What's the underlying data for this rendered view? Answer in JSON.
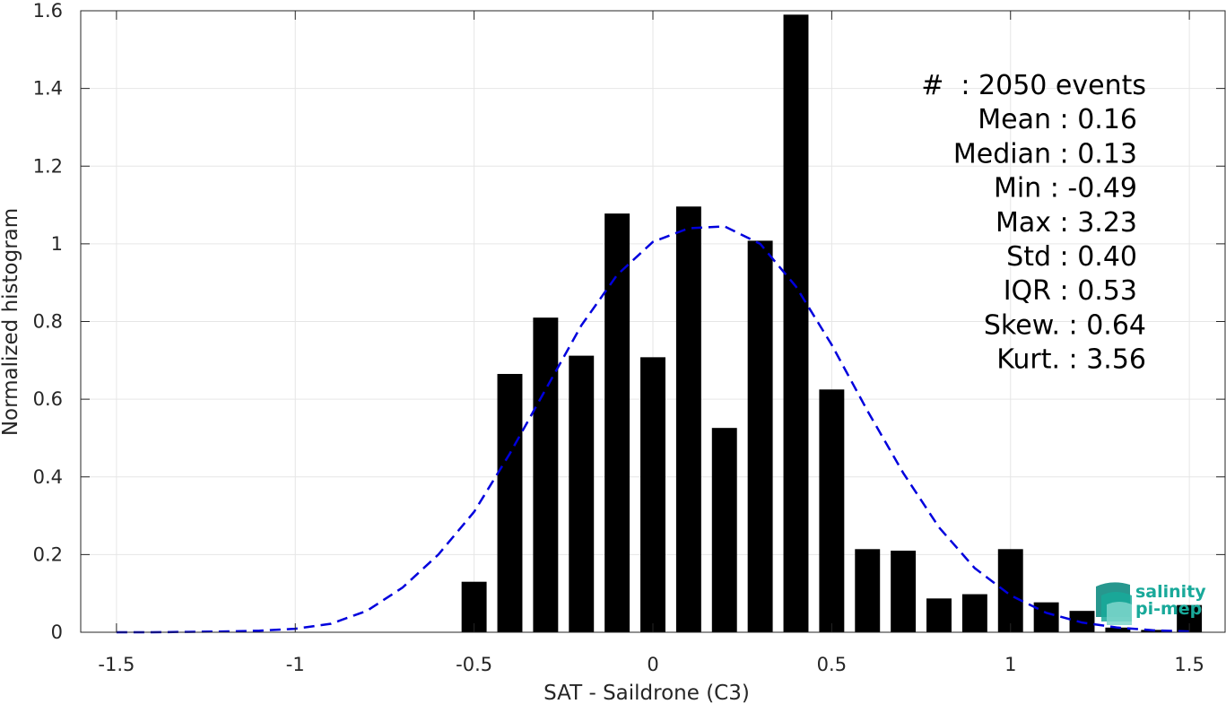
{
  "chart_data": {
    "type": "bar",
    "xlabel": "SAT - Saildrone (C3)",
    "ylabel": "Normalized histogram",
    "xlim": [
      -1.6,
      1.6
    ],
    "ylim": [
      0,
      1.6
    ],
    "xticks": [
      -1.5,
      -1,
      -0.5,
      0,
      0.5,
      1,
      1.5
    ],
    "xtick_labels": [
      "-1.5",
      "-1",
      "-0.5",
      "0",
      "0.5",
      "1",
      "1.5"
    ],
    "yticks": [
      0,
      0.2,
      0.4,
      0.6,
      0.8,
      1,
      1.2,
      1.4,
      1.6
    ],
    "ytick_labels": [
      "0",
      "0.2",
      "0.4",
      "0.6",
      "0.8",
      "1",
      "1.2",
      "1.4",
      "1.6"
    ],
    "grid": true,
    "bar_color": "#000000",
    "bar_width": 0.07,
    "bars": {
      "x": [
        -0.5,
        -0.4,
        -0.3,
        -0.2,
        -0.1,
        0.0,
        0.1,
        0.2,
        0.3,
        0.4,
        0.5,
        0.6,
        0.7,
        0.8,
        0.9,
        1.0,
        1.1,
        1.2,
        1.3,
        1.4,
        1.5
      ],
      "y": [
        0.13,
        0.665,
        0.81,
        0.712,
        1.078,
        0.708,
        1.096,
        0.526,
        1.008,
        1.59,
        0.625,
        0.214,
        0.21,
        0.087,
        0.098,
        0.214,
        0.077,
        0.055,
        0.012,
        0.006,
        0.07
      ]
    },
    "fit_curve": {
      "style": "dashed",
      "color": "#0000dd",
      "x": [
        -1.5,
        -1.4,
        -1.3,
        -1.2,
        -1.1,
        -1.0,
        -0.9,
        -0.8,
        -0.7,
        -0.6,
        -0.5,
        -0.4,
        -0.3,
        -0.2,
        -0.1,
        0.0,
        0.1,
        0.2,
        0.3,
        0.4,
        0.5,
        0.6,
        0.7,
        0.8,
        0.9,
        1.0,
        1.1,
        1.2,
        1.3,
        1.4,
        1.5
      ],
      "y": [
        0.0,
        0.0,
        0.001,
        0.002,
        0.004,
        0.009,
        0.022,
        0.055,
        0.115,
        0.2,
        0.31,
        0.46,
        0.625,
        0.79,
        0.92,
        1.005,
        1.04,
        1.045,
        1.0,
        0.89,
        0.74,
        0.57,
        0.41,
        0.27,
        0.165,
        0.095,
        0.05,
        0.025,
        0.012,
        0.005,
        0.002
      ]
    },
    "stats": [
      "#  : 2050 events",
      "Mean : 0.16",
      "Median : 0.13",
      "Min : -0.49",
      "Max : 3.23",
      "Std : 0.40",
      "IQR : 0.53",
      "Skew. : 0.64",
      "Kurt. : 3.56"
    ]
  },
  "logo": {
    "line1": "salinity",
    "line2": "pi-mep",
    "color": "#19a99a"
  }
}
